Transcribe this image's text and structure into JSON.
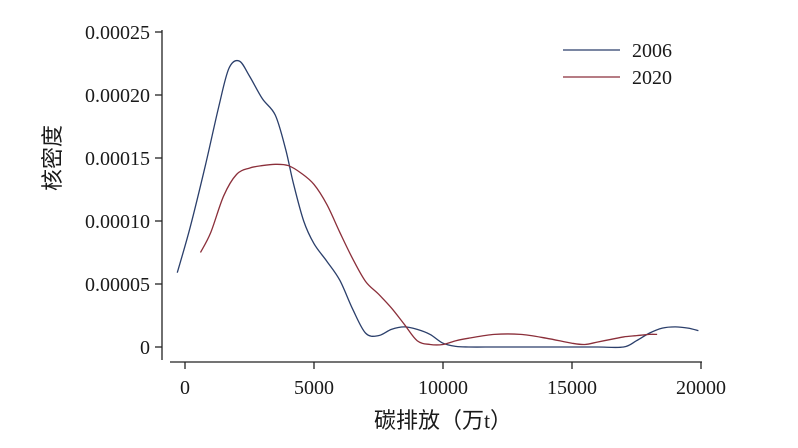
{
  "chart_data": {
    "type": "line",
    "title": "",
    "xlabel": "碳排放（万t）",
    "ylabel": "核密度",
    "xlim": [
      -500,
      20200
    ],
    "ylim": [
      0,
      0.00025
    ],
    "xticks": [
      0,
      5000,
      10000,
      15000,
      20000
    ],
    "xtick_labels": [
      "0",
      "5000",
      "10000",
      "15000",
      "20000"
    ],
    "yticks": [
      0,
      5e-05,
      0.0001,
      0.00015,
      0.0002,
      0.00025
    ],
    "ytick_labels": [
      "0",
      "0.00005",
      "0.00010",
      "0.00015",
      "0.00020",
      "0.00025"
    ],
    "grid": false,
    "legend_position": "top-right",
    "series": [
      {
        "name": "2006",
        "color": "#2b3f6b",
        "x": [
          -300,
          200,
          800,
          1300,
          1700,
          2100,
          2500,
          3000,
          3500,
          3900,
          4200,
          4600,
          5000,
          5500,
          6000,
          6500,
          7000,
          7500,
          8000,
          8500,
          9000,
          9500,
          10000,
          10500,
          11000,
          12000,
          13000,
          14000,
          15000,
          16000,
          17000,
          17500,
          18000,
          18500,
          19000,
          19500,
          19900
        ],
        "y": [
          5.9e-05,
          9.5e-05,
          0.000145,
          0.00019,
          0.000221,
          0.000227,
          0.000215,
          0.000197,
          0.000184,
          0.000157,
          0.00013,
          0.0001,
          8.2e-05,
          6.8e-05,
          5.3e-05,
          3e-05,
          1.1e-05,
          9e-06,
          1.4e-05,
          1.6e-05,
          1.4e-05,
          1e-05,
          3e-06,
          5e-07,
          0,
          0,
          0,
          0,
          0,
          0,
          0,
          5e-06,
          1.1e-05,
          1.5e-05,
          1.6e-05,
          1.5e-05,
          1.3e-05
        ]
      },
      {
        "name": "2020",
        "color": "#8b2f3a",
        "x": [
          600,
          1000,
          1500,
          2000,
          2500,
          3000,
          3500,
          4000,
          4500,
          5000,
          5500,
          6000,
          6500,
          7000,
          7500,
          8000,
          8500,
          9000,
          9500,
          10000,
          10500,
          11000,
          12000,
          13000,
          14000,
          15000,
          15500,
          16000,
          16500,
          17000,
          17500,
          18000,
          18300
        ],
        "y": [
          7.5e-05,
          9.1e-05,
          0.00012,
          0.000137,
          0.000142,
          0.000144,
          0.000145,
          0.000144,
          0.000138,
          0.000129,
          0.000113,
          9.1e-05,
          7e-05,
          5.2e-05,
          4.2e-05,
          3.1e-05,
          1.8e-05,
          5e-06,
          2e-06,
          2e-06,
          5e-06,
          7e-06,
          1e-05,
          1e-05,
          7e-06,
          3e-06,
          2e-06,
          4e-06,
          6e-06,
          8e-06,
          9e-06,
          1e-05,
          1e-05
        ]
      }
    ]
  }
}
